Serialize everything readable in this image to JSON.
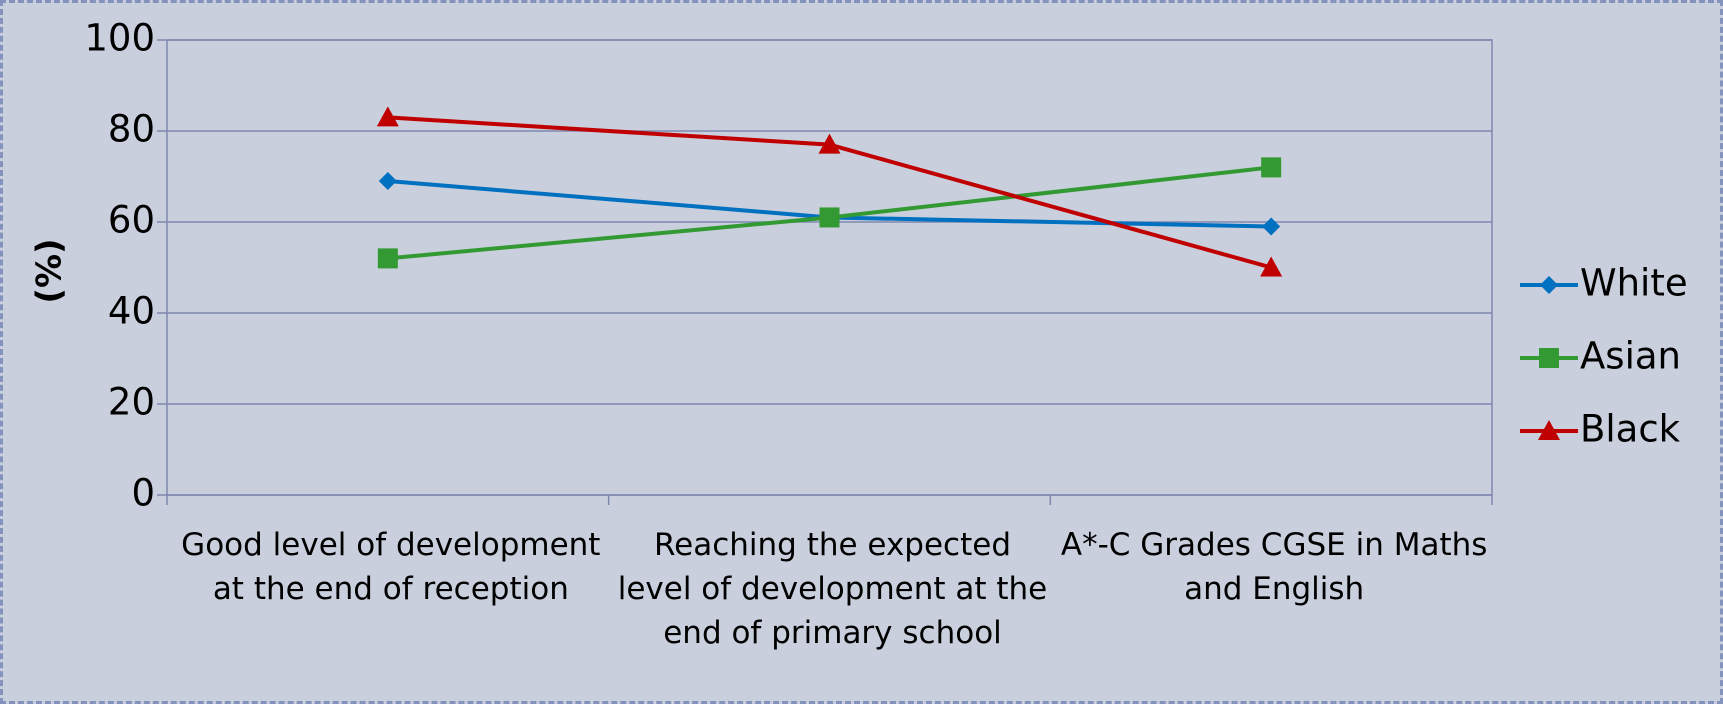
{
  "chart_data": {
    "type": "line",
    "y_label": "(%)",
    "categories": [
      "Good level of development at the end of reception",
      "Reaching the expected level of development at the end of primary school",
      "A*-C Grades CGSE in Maths and English"
    ],
    "series": [
      {
        "name": "White",
        "color": "#0070c0",
        "marker": "diamond",
        "values": [
          69,
          61,
          59
        ]
      },
      {
        "name": "Asian",
        "color": "#339933",
        "marker": "square",
        "values": [
          52,
          61,
          72
        ]
      },
      {
        "name": "Black",
        "color": "#c00000",
        "marker": "triangle",
        "values": [
          83,
          77,
          50
        ]
      }
    ],
    "ylim": [
      0,
      100
    ],
    "yticks": [
      0,
      20,
      40,
      60,
      80,
      100
    ],
    "grid": true,
    "legend": "right"
  }
}
